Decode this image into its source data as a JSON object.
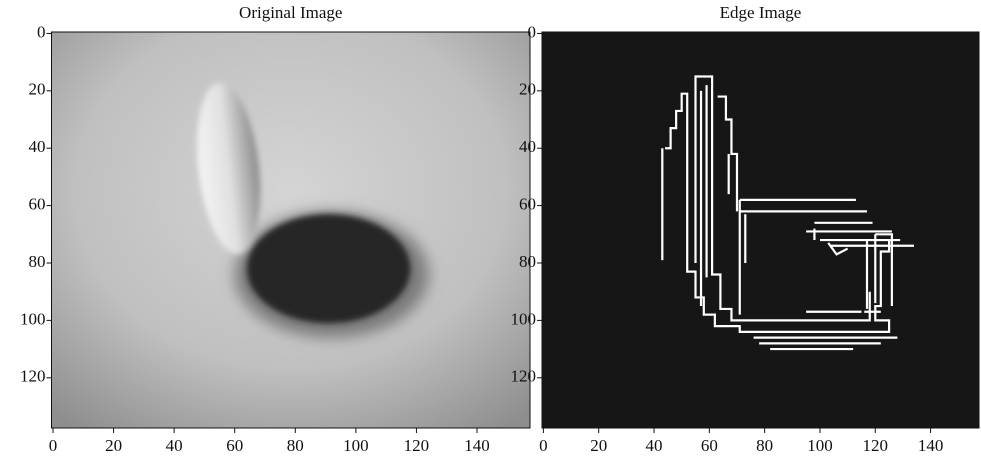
{
  "chart_data": [
    {
      "type": "image",
      "title": "Original Image",
      "xlim": [
        -0.5,
        157.5
      ],
      "ylim": [
        137.5,
        -0.5
      ],
      "xticks": [
        0,
        20,
        40,
        60,
        80,
        100,
        120,
        140
      ],
      "yticks": [
        0,
        20,
        40,
        60,
        80,
        100,
        120
      ]
    },
    {
      "type": "image",
      "title": "Edge Image",
      "xlim": [
        -0.5,
        157.5
      ],
      "ylim": [
        137.5,
        -0.5
      ],
      "xticks": [
        0,
        20,
        40,
        60,
        80,
        100,
        120,
        140
      ],
      "yticks": [
        0,
        20,
        40,
        60,
        80,
        100,
        120
      ]
    }
  ]
}
